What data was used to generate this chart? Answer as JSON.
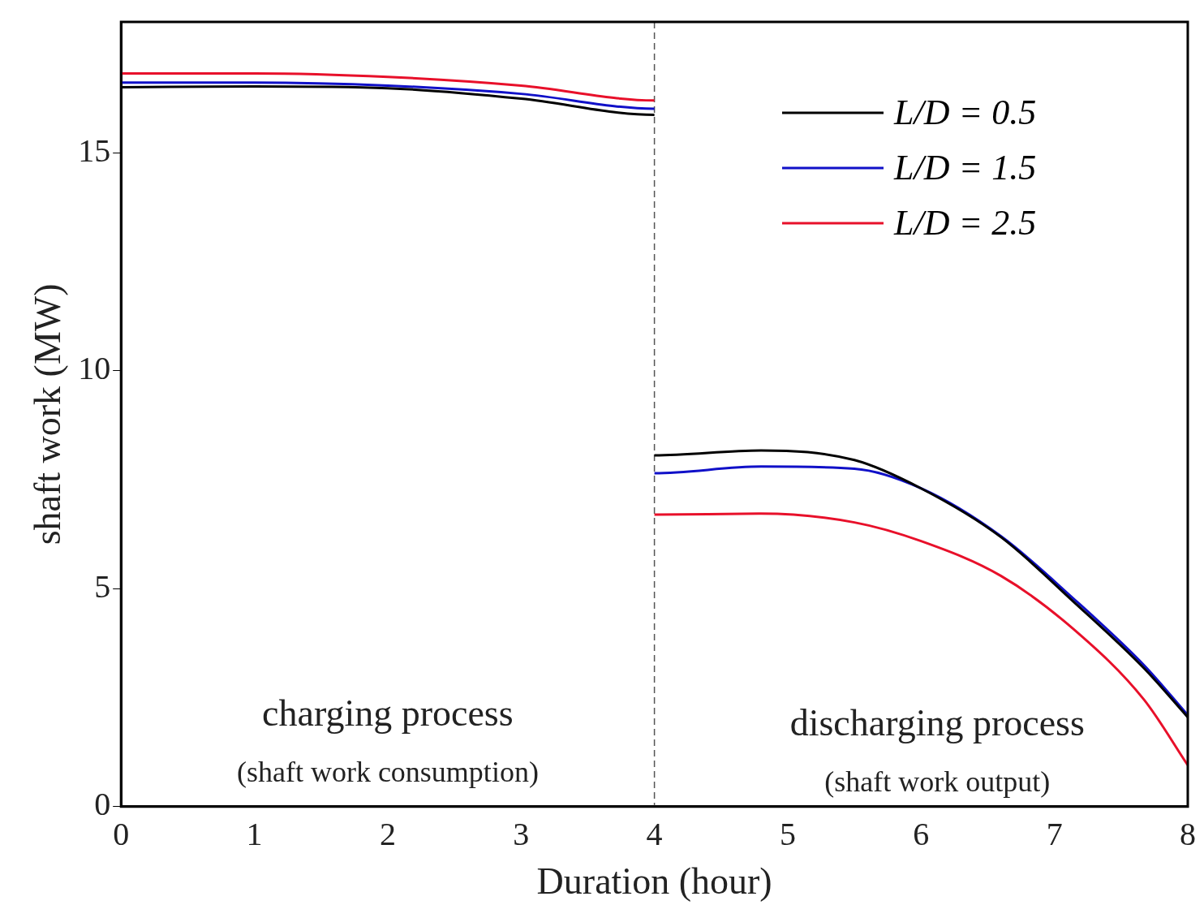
{
  "chart_data": {
    "type": "line",
    "xlabel": "Duration (hour)",
    "ylabel": "shaft work (MW)",
    "xlim": [
      0,
      8
    ],
    "xticks": [
      0,
      1,
      2,
      3,
      4,
      5,
      6,
      7,
      8
    ],
    "ylim": [
      0,
      18
    ],
    "yticks": [
      0,
      5,
      10,
      15
    ],
    "x": [
      0,
      1,
      2,
      3,
      4,
      4,
      4.8,
      5.5,
      6,
      6.6,
      7.14,
      7.67,
      8
    ],
    "series": [
      {
        "name": "L/D = 0.5",
        "color": "#000000",
        "values": [
          16.5,
          16.52,
          16.48,
          16.24,
          15.87,
          8.06,
          8.17,
          7.95,
          7.3,
          6.18,
          4.71,
          3.18,
          2.05
        ]
      },
      {
        "name": "L/D = 1.5",
        "color": "#1010c8",
        "values": [
          16.61,
          16.61,
          16.54,
          16.35,
          16.01,
          7.65,
          7.8,
          7.75,
          7.3,
          6.2,
          4.78,
          3.25,
          2.1
        ]
      },
      {
        "name": "L/D = 2.5",
        "color": "#e8102a",
        "values": [
          16.82,
          16.82,
          16.74,
          16.54,
          16.2,
          6.7,
          6.72,
          6.52,
          6.09,
          5.29,
          4.08,
          2.46,
          0.95
        ]
      }
    ],
    "ref_lines": [
      {
        "axis": "x",
        "value": 4,
        "color": "#555555",
        "line_style": "dashed"
      }
    ],
    "annotations": [
      "charging process",
      "(shaft work consumption)",
      "discharging process",
      "(shaft work output)"
    ],
    "legend": "top right",
    "grid": false,
    "marker": "none",
    "line_style": "solid"
  }
}
